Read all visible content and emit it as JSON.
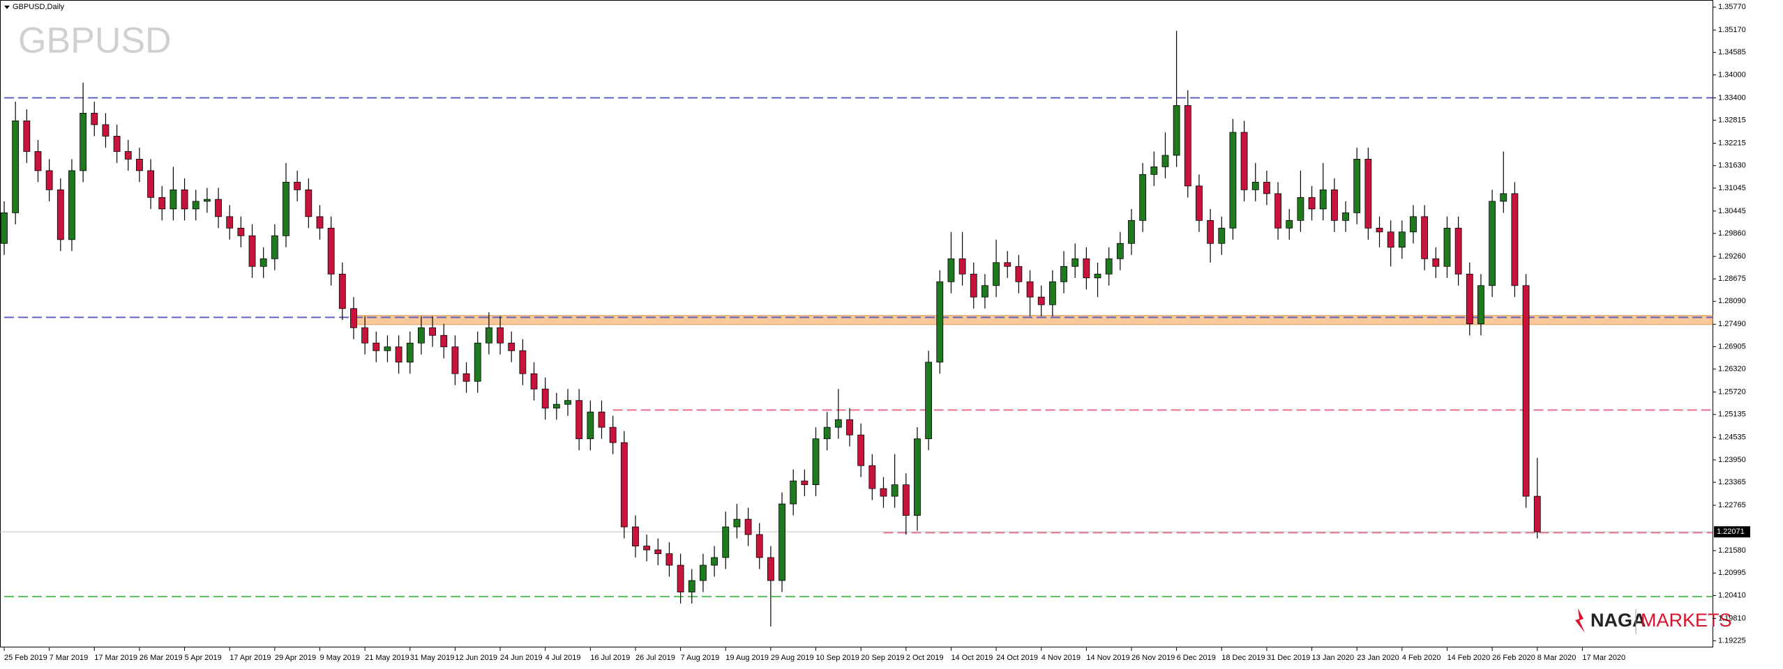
{
  "chart_data": {
    "type": "candlestick",
    "title": "GBPUSD,Daily",
    "watermark": "GBPUSD",
    "x_labels": [
      "25 Feb 2019",
      "7 Mar 2019",
      "17 Mar 2019",
      "26 Mar 2019",
      "5 Apr 2019",
      "17 Apr 2019",
      "29 Apr 2019",
      "9 May 2019",
      "21 May 2019",
      "31 May 2019",
      "12 Jun 2019",
      "24 Jun 2019",
      "4 Jul 2019",
      "16 Jul 2019",
      "26 Jul 2019",
      "7 Aug 2019",
      "19 Aug 2019",
      "29 Aug 2019",
      "10 Sep 2019",
      "20 Sep 2019",
      "2 Oct 2019",
      "14 Oct 2019",
      "24 Oct 2019",
      "4 Nov 2019",
      "14 Nov 2019",
      "26 Nov 2019",
      "6 Dec 2019",
      "18 Dec 2019",
      "31 Dec 2019",
      "13 Jan 2020",
      "23 Jan 2020",
      "4 Feb 2020",
      "14 Feb 2020",
      "26 Feb 2020",
      "8 Mar 2020",
      "17 Mar 2020"
    ],
    "open": [
      1.296,
      1.304,
      1.328,
      1.32,
      1.315,
      1.31,
      1.297,
      1.315,
      1.33,
      1.327,
      1.324,
      1.32,
      1.318,
      1.315,
      1.308,
      1.305,
      1.31,
      1.305,
      1.307,
      1.3075,
      1.303,
      1.3,
      1.298,
      1.29,
      1.292,
      1.298,
      1.312,
      1.31,
      1.303,
      1.3,
      1.288,
      1.279,
      1.274,
      1.27,
      1.268,
      1.269,
      1.265,
      1.27,
      1.274,
      1.272,
      1.269,
      1.262,
      1.26,
      1.27,
      1.274,
      1.27,
      1.268,
      1.262,
      1.258,
      1.253,
      1.254,
      1.255,
      1.245,
      1.252,
      1.248,
      1.244,
      1.222,
      1.217,
      1.216,
      1.215,
      1.212,
      1.205,
      1.208,
      1.212,
      1.214,
      1.222,
      1.224,
      1.22,
      1.214,
      1.208,
      1.228,
      1.234,
      1.233,
      1.245,
      1.248,
      1.25,
      1.246,
      1.238,
      1.232,
      1.23,
      1.233,
      1.225,
      1.245,
      1.265,
      1.286,
      1.292,
      1.288,
      1.282,
      1.285,
      1.291,
      1.29,
      1.286,
      1.282,
      1.28,
      1.286,
      1.29,
      1.292,
      1.287,
      1.288,
      1.292,
      1.296,
      1.302,
      1.314,
      1.316,
      1.319,
      1.332,
      1.311,
      1.302,
      1.296,
      1.3,
      1.325,
      1.31,
      1.312,
      1.309,
      1.3,
      1.302,
      1.308,
      1.305,
      1.31,
      1.302,
      1.304,
      1.318,
      1.3,
      1.299,
      1.295,
      1.299,
      1.303,
      1.292,
      1.29,
      1.3,
      1.288,
      1.275,
      1.285,
      1.307,
      1.309,
      1.285,
      1.23
    ],
    "high": [
      1.307,
      1.333,
      1.331,
      1.323,
      1.318,
      1.313,
      1.318,
      1.338,
      1.333,
      1.33,
      1.327,
      1.323,
      1.321,
      1.318,
      1.311,
      1.316,
      1.313,
      1.31,
      1.3105,
      1.3105,
      1.306,
      1.303,
      1.301,
      1.295,
      1.301,
      1.317,
      1.315,
      1.313,
      1.306,
      1.303,
      1.291,
      1.282,
      1.277,
      1.273,
      1.272,
      1.272,
      1.273,
      1.277,
      1.277,
      1.275,
      1.272,
      1.265,
      1.273,
      1.278,
      1.277,
      1.273,
      1.271,
      1.265,
      1.261,
      1.257,
      1.258,
      1.258,
      1.255,
      1.255,
      1.251,
      1.247,
      1.225,
      1.22,
      1.219,
      1.218,
      1.215,
      1.211,
      1.215,
      1.217,
      1.226,
      1.228,
      1.227,
      1.223,
      1.217,
      1.231,
      1.237,
      1.237,
      1.248,
      1.252,
      1.258,
      1.253,
      1.249,
      1.241,
      1.235,
      1.241,
      1.236,
      1.248,
      1.268,
      1.289,
      1.299,
      1.299,
      1.291,
      1.288,
      1.297,
      1.294,
      1.293,
      1.289,
      1.285,
      1.289,
      1.294,
      1.296,
      1.295,
      1.291,
      1.295,
      1.299,
      1.305,
      1.317,
      1.32,
      1.325,
      1.3515,
      1.336,
      1.314,
      1.305,
      1.303,
      1.3285,
      1.328,
      1.317,
      1.315,
      1.312,
      1.305,
      1.315,
      1.311,
      1.317,
      1.313,
      1.307,
      1.321,
      1.321,
      1.303,
      1.302,
      1.302,
      1.306,
      1.306,
      1.295,
      1.303,
      1.303,
      1.291,
      1.288,
      1.31,
      1.32,
      1.312,
      1.288,
      1.24
    ],
    "low": [
      1.293,
      1.301,
      1.317,
      1.312,
      1.307,
      1.294,
      1.294,
      1.312,
      1.324,
      1.321,
      1.317,
      1.315,
      1.312,
      1.305,
      1.302,
      1.302,
      1.302,
      1.302,
      1.304,
      1.3,
      1.297,
      1.295,
      1.287,
      1.287,
      1.289,
      1.295,
      1.307,
      1.3,
      1.297,
      1.285,
      1.276,
      1.271,
      1.267,
      1.265,
      1.265,
      1.262,
      1.262,
      1.267,
      1.269,
      1.266,
      1.259,
      1.257,
      1.257,
      1.267,
      1.267,
      1.265,
      1.259,
      1.255,
      1.25,
      1.25,
      1.251,
      1.242,
      1.242,
      1.245,
      1.241,
      1.219,
      1.214,
      1.213,
      1.212,
      1.209,
      1.202,
      1.202,
      1.205,
      1.209,
      1.211,
      1.219,
      1.217,
      1.211,
      1.196,
      1.205,
      1.225,
      1.23,
      1.23,
      1.242,
      1.245,
      1.243,
      1.235,
      1.229,
      1.227,
      1.227,
      1.22,
      1.221,
      1.242,
      1.262,
      1.283,
      1.285,
      1.279,
      1.279,
      1.282,
      1.287,
      1.283,
      1.277,
      1.277,
      1.277,
      1.283,
      1.287,
      1.284,
      1.282,
      1.285,
      1.289,
      1.293,
      1.299,
      1.311,
      1.313,
      1.316,
      1.308,
      1.299,
      1.291,
      1.293,
      1.297,
      1.307,
      1.307,
      1.306,
      1.297,
      1.297,
      1.299,
      1.302,
      1.302,
      1.299,
      1.299,
      1.301,
      1.297,
      1.295,
      1.29,
      1.292,
      1.296,
      1.289,
      1.287,
      1.287,
      1.285,
      1.272,
      1.272,
      1.282,
      1.304,
      1.282,
      1.227,
      1.219
    ],
    "close": [
      1.304,
      1.328,
      1.32,
      1.315,
      1.31,
      1.297,
      1.315,
      1.33,
      1.327,
      1.324,
      1.32,
      1.318,
      1.315,
      1.308,
      1.305,
      1.31,
      1.305,
      1.307,
      1.3075,
      1.303,
      1.3,
      1.298,
      1.29,
      1.292,
      1.298,
      1.312,
      1.31,
      1.303,
      1.3,
      1.288,
      1.279,
      1.274,
      1.27,
      1.268,
      1.269,
      1.265,
      1.27,
      1.274,
      1.272,
      1.269,
      1.262,
      1.26,
      1.27,
      1.274,
      1.27,
      1.268,
      1.262,
      1.258,
      1.253,
      1.254,
      1.255,
      1.245,
      1.252,
      1.248,
      1.244,
      1.222,
      1.217,
      1.216,
      1.215,
      1.212,
      1.205,
      1.208,
      1.212,
      1.214,
      1.222,
      1.224,
      1.22,
      1.214,
      1.208,
      1.228,
      1.234,
      1.233,
      1.245,
      1.248,
      1.25,
      1.246,
      1.238,
      1.232,
      1.23,
      1.233,
      1.225,
      1.245,
      1.265,
      1.286,
      1.292,
      1.288,
      1.282,
      1.285,
      1.291,
      1.29,
      1.286,
      1.282,
      1.28,
      1.286,
      1.29,
      1.292,
      1.287,
      1.288,
      1.292,
      1.296,
      1.302,
      1.314,
      1.316,
      1.319,
      1.332,
      1.311,
      1.302,
      1.296,
      1.3,
      1.325,
      1.31,
      1.312,
      1.309,
      1.3,
      1.302,
      1.308,
      1.305,
      1.31,
      1.302,
      1.304,
      1.318,
      1.3,
      1.299,
      1.295,
      1.299,
      1.303,
      1.292,
      1.29,
      1.3,
      1.288,
      1.275,
      1.285,
      1.307,
      1.309,
      1.285,
      1.23,
      1.2207
    ],
    "up_color": "#1f7a1f",
    "down_color": "#c8143c",
    "ylim": [
      1.19,
      1.359
    ],
    "yticks": [
      {
        "value": 1.3577,
        "label": "1.35770"
      },
      {
        "value": 1.3517,
        "label": "1.35170"
      },
      1.34585,
      {
        "value": 1.34,
        "label": "1.34000"
      },
      {
        "value": 1.334,
        "label": "1.33400"
      },
      1.32815,
      1.32215,
      {
        "value": 1.3163,
        "label": "1.31630"
      },
      1.31045,
      1.30445,
      {
        "value": 1.2986,
        "label": "1.29860"
      },
      {
        "value": 1.2926,
        "label": "1.29260"
      },
      1.28675,
      {
        "value": 1.2809,
        "label": "1.28090"
      },
      {
        "value": 1.2749,
        "label": "1.27490"
      },
      1.26905,
      {
        "value": 1.2632,
        "label": "1.26320"
      },
      {
        "value": 1.2572,
        "label": "1.25720"
      },
      1.25135,
      1.24535,
      {
        "value": 1.2395,
        "label": "1.23950"
      },
      1.23365,
      1.22765,
      {
        "value": 1.2158,
        "label": "1.21580"
      },
      1.20995,
      {
        "value": 1.2041,
        "label": "1.20410"
      },
      {
        "value": 1.1981,
        "label": "1.19810"
      },
      1.19225
    ],
    "current_price": 1.22071,
    "levels": [
      {
        "value": 1.334,
        "color": "#6060c0",
        "start": 0
      },
      {
        "value": 1.2767,
        "color": "#6060c0",
        "start": 0
      },
      {
        "value": 1.2525,
        "color": "#e8708a",
        "start": 54
      },
      {
        "value": 1.2205,
        "color": "#e8708a",
        "start": 78
      },
      {
        "value": 1.2038,
        "color": "#5cbf5c",
        "start": 0
      }
    ],
    "zone": {
      "low": 1.2748,
      "high": 1.2772,
      "color": "#f9c89a",
      "start": 31
    }
  },
  "logo": {
    "left": "NAGA",
    "right": "MARKETS"
  }
}
